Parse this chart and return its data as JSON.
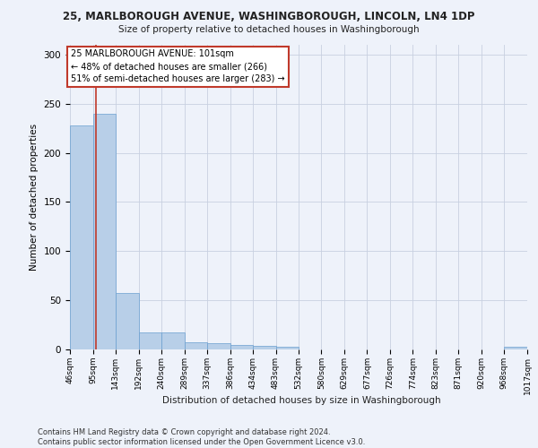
{
  "title1": "25, MARLBOROUGH AVENUE, WASHINGBOROUGH, LINCOLN, LN4 1DP",
  "title2": "Size of property relative to detached houses in Washingborough",
  "xlabel": "Distribution of detached houses by size in Washingborough",
  "ylabel": "Number of detached properties",
  "footer": "Contains HM Land Registry data © Crown copyright and database right 2024.\nContains public sector information licensed under the Open Government Licence v3.0.",
  "bin_edges": [
    46,
    95,
    143,
    192,
    240,
    289,
    337,
    386,
    434,
    483,
    532,
    580,
    629,
    677,
    726,
    774,
    823,
    871,
    920,
    968,
    1017
  ],
  "bar_heights": [
    228,
    240,
    57,
    17,
    17,
    7,
    6,
    5,
    4,
    3,
    0,
    0,
    0,
    0,
    0,
    0,
    0,
    0,
    0,
    3
  ],
  "bar_color": "#b8cfe8",
  "bar_edge_color": "#6a9fd0",
  "property_size": 101,
  "property_label": "25 MARLBOROUGH AVENUE: 101sqm",
  "annotation_line1": "← 48% of detached houses are smaller (266)",
  "annotation_line2": "51% of semi-detached houses are larger (283) →",
  "vline_color": "#c0392b",
  "annotation_box_color": "#ffffff",
  "annotation_border_color": "#c0392b",
  "background_color": "#eef2fa",
  "grid_color": "#c8d0e0",
  "ylim": [
    0,
    310
  ],
  "yticks": [
    0,
    50,
    100,
    150,
    200,
    250,
    300
  ]
}
